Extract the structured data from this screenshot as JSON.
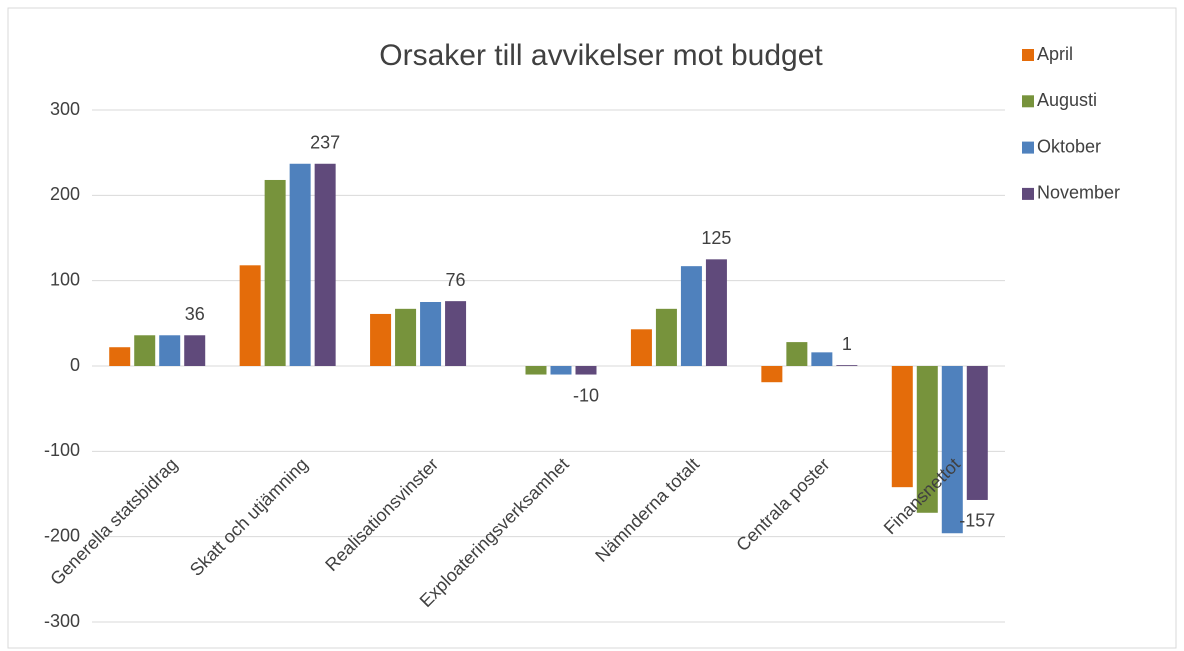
{
  "chart_data": {
    "type": "bar",
    "title": "Orsaker till avvikelser mot budget",
    "categories": [
      "Generella statsbidrag",
      "Skatt och utjämning",
      "Realisationsvinster",
      "Exploateringsverksamhet",
      "Nämnderna totalt",
      "Centrala poster",
      "Finansnettot"
    ],
    "series": [
      {
        "name": "April",
        "color": "#e46c0a",
        "values": [
          22,
          118,
          61,
          0,
          43,
          -19,
          -142
        ]
      },
      {
        "name": "Augusti",
        "color": "#77933c",
        "values": [
          36,
          218,
          67,
          -10,
          67,
          28,
          -172
        ]
      },
      {
        "name": "Oktober",
        "color": "#4f81bd",
        "values": [
          36,
          237,
          75,
          -10,
          117,
          16,
          -196
        ]
      },
      {
        "name": "November",
        "color": "#604a7b",
        "values": [
          36,
          237,
          76,
          -10,
          125,
          1,
          -157
        ]
      }
    ],
    "ylim": [
      -300,
      300
    ],
    "yticks": [
      -300,
      -200,
      -100,
      0,
      100,
      200,
      300
    ],
    "grid": true,
    "legend": "right",
    "data_labels_series": 3
  }
}
